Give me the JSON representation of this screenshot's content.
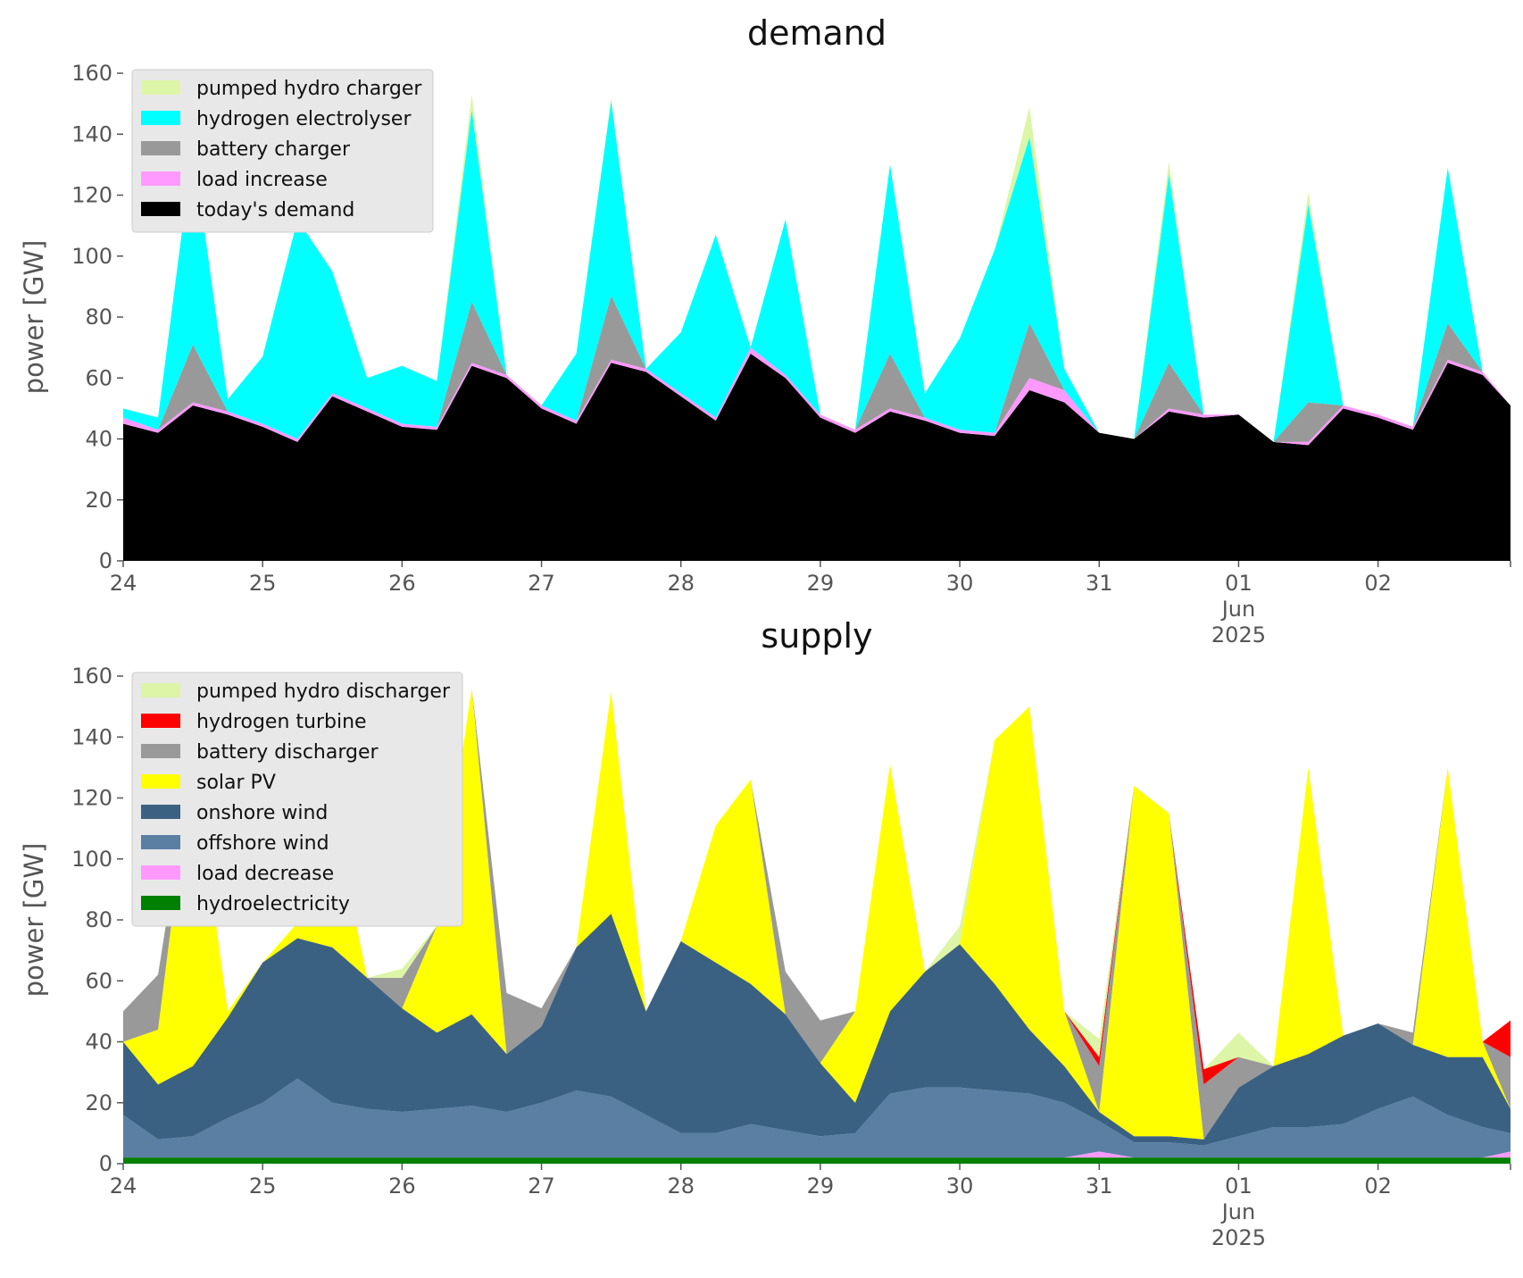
{
  "chart_data": [
    {
      "type": "area",
      "stacked": true,
      "title": "demand",
      "ylabel": "power [GW]",
      "ylim": [
        0,
        160
      ],
      "yticks": [
        0,
        20,
        40,
        60,
        80,
        100,
        120,
        140,
        160
      ],
      "xlim": [
        0,
        9.95
      ],
      "xticks": [
        {
          "x": 0,
          "label": "24"
        },
        {
          "x": 1,
          "label": "25"
        },
        {
          "x": 2,
          "label": "26"
        },
        {
          "x": 3,
          "label": "27"
        },
        {
          "x": 4,
          "label": "28"
        },
        {
          "x": 5,
          "label": "29"
        },
        {
          "x": 6,
          "label": "30"
        },
        {
          "x": 7,
          "label": "31"
        },
        {
          "x": 8,
          "label": "01\nJun\n2025"
        },
        {
          "x": 9,
          "label": "02"
        }
      ],
      "legend_position": "top-left",
      "legend": [
        "pumped hydro charger",
        "hydrogen electrolyser",
        "battery charger",
        "load increase",
        "today's demand"
      ],
      "x": [
        0,
        0.25,
        0.5,
        0.75,
        1,
        1.25,
        1.5,
        1.75,
        2,
        2.25,
        2.5,
        2.75,
        3,
        3.25,
        3.5,
        3.75,
        4,
        4.25,
        4.5,
        4.75,
        5,
        5.25,
        5.5,
        5.75,
        6,
        6.25,
        6.5,
        6.75,
        7,
        7.25,
        7.5,
        7.75,
        8,
        8.25,
        8.5,
        8.75,
        9,
        9.25,
        9.5,
        9.75,
        9.95
      ],
      "series": [
        {
          "name": "today's demand",
          "color": "#000000",
          "values": [
            45,
            42,
            51,
            48,
            44,
            39,
            54,
            49,
            44,
            43,
            64,
            60,
            50,
            45,
            65,
            62,
            54,
            46,
            68,
            60,
            47,
            42,
            49,
            46,
            42,
            41,
            56,
            52,
            42,
            40,
            49,
            47,
            48,
            39,
            38,
            50,
            47,
            43,
            65,
            61,
            51
          ]
        },
        {
          "name": "load increase",
          "color": "#ff99ff",
          "values": [
            2,
            1,
            1,
            1,
            1,
            1,
            1,
            1,
            1,
            1,
            1,
            1,
            1,
            1,
            1,
            1,
            1,
            1,
            2,
            1,
            1,
            1,
            1,
            1,
            1,
            1,
            4,
            4,
            0,
            0,
            1,
            1,
            0,
            0,
            1,
            1,
            1,
            1,
            1,
            1,
            0
          ]
        },
        {
          "name": "battery charger",
          "color": "#999999",
          "values": [
            0,
            0,
            19,
            0,
            0,
            0,
            0,
            0,
            0,
            0,
            20,
            0,
            0,
            0,
            21,
            0,
            0,
            0,
            0,
            0,
            0,
            0,
            18,
            0,
            0,
            0,
            18,
            0,
            0,
            0,
            15,
            0,
            0,
            0,
            13,
            0,
            0,
            0,
            12,
            0,
            0
          ]
        },
        {
          "name": "hydrogen electrolyser",
          "color": "#00ffff",
          "values": [
            3,
            4,
            65,
            4,
            22,
            72,
            40,
            10,
            19,
            15,
            63,
            0,
            0,
            22,
            64,
            0,
            20,
            60,
            0,
            51,
            0,
            0,
            62,
            8,
            30,
            60,
            61,
            7,
            0,
            0,
            62,
            0,
            0,
            0,
            65,
            0,
            0,
            0,
            51,
            0,
            0
          ]
        },
        {
          "name": "pumped hydro charger",
          "color": "#dcf5a6",
          "values": [
            0,
            0,
            0,
            0,
            0,
            0,
            0,
            0,
            0,
            0,
            5,
            0,
            0,
            0,
            1,
            0,
            0,
            0,
            0,
            0,
            0,
            0,
            0,
            0,
            0,
            0,
            10,
            0,
            0,
            0,
            4,
            0,
            0,
            0,
            4,
            0,
            0,
            0,
            0,
            0,
            0
          ]
        }
      ]
    },
    {
      "type": "area",
      "stacked": true,
      "title": "supply",
      "ylabel": "power [GW]",
      "ylim": [
        0,
        160
      ],
      "yticks": [
        0,
        20,
        40,
        60,
        80,
        100,
        120,
        140,
        160
      ],
      "xlim": [
        0,
        9.95
      ],
      "xticks": [
        {
          "x": 0,
          "label": "24"
        },
        {
          "x": 1,
          "label": "25"
        },
        {
          "x": 2,
          "label": "26"
        },
        {
          "x": 3,
          "label": "27"
        },
        {
          "x": 4,
          "label": "28"
        },
        {
          "x": 5,
          "label": "29"
        },
        {
          "x": 6,
          "label": "30"
        },
        {
          "x": 7,
          "label": "31"
        },
        {
          "x": 8,
          "label": "01\nJun\n2025"
        },
        {
          "x": 9,
          "label": "02"
        }
      ],
      "legend_position": "top-left",
      "legend": [
        "pumped hydro discharger",
        "hydrogen turbine",
        "battery discharger",
        "solar PV",
        "onshore wind",
        "offshore wind",
        "load decrease",
        "hydroelectricity"
      ],
      "x": [
        0,
        0.25,
        0.5,
        0.75,
        1,
        1.25,
        1.5,
        1.75,
        2,
        2.25,
        2.5,
        2.75,
        3,
        3.25,
        3.5,
        3.75,
        4,
        4.25,
        4.5,
        4.75,
        5,
        5.25,
        5.5,
        5.75,
        6,
        6.25,
        6.5,
        6.75,
        7,
        7.25,
        7.5,
        7.75,
        8,
        8.25,
        8.5,
        8.75,
        9,
        9.25,
        9.5,
        9.75,
        9.95
      ],
      "series": [
        {
          "name": "hydroelectricity",
          "color": "#008000",
          "values": [
            2,
            2,
            2,
            2,
            2,
            2,
            2,
            2,
            2,
            2,
            2,
            2,
            2,
            2,
            2,
            2,
            2,
            2,
            2,
            2,
            2,
            2,
            2,
            2,
            2,
            2,
            2,
            2,
            2,
            2,
            2,
            2,
            2,
            2,
            2,
            2,
            2,
            2,
            2,
            2,
            2
          ]
        },
        {
          "name": "load decrease",
          "color": "#ff99ff",
          "values": [
            0,
            0,
            0,
            0,
            0,
            0,
            0,
            0,
            0,
            0,
            0,
            0,
            0,
            0,
            0,
            0,
            0,
            0,
            0,
            0,
            0,
            0,
            0,
            0,
            0,
            0,
            0,
            0,
            2,
            0,
            0,
            0,
            0,
            0,
            0,
            0,
            0,
            0,
            0,
            0,
            2
          ]
        },
        {
          "name": "offshore wind",
          "color": "#5a7fa3",
          "values": [
            14,
            6,
            7,
            13,
            18,
            26,
            18,
            16,
            15,
            16,
            17,
            15,
            18,
            22,
            20,
            14,
            8,
            8,
            11,
            9,
            7,
            8,
            21,
            23,
            23,
            22,
            21,
            18,
            10,
            5,
            5,
            4,
            7,
            10,
            10,
            11,
            16,
            20,
            14,
            10,
            6
          ]
        },
        {
          "name": "onshore wind",
          "color": "#3b6182",
          "values": [
            24,
            18,
            23,
            33,
            46,
            46,
            51,
            43,
            34,
            25,
            30,
            19,
            25,
            47,
            60,
            34,
            63,
            56,
            46,
            38,
            24,
            10,
            27,
            38,
            47,
            35,
            21,
            12,
            3,
            2,
            2,
            2,
            16,
            20,
            24,
            29,
            28,
            17,
            19,
            23,
            8
          ]
        },
        {
          "name": "solar PV",
          "color": "#ffff00",
          "values": [
            0,
            18,
            103,
            2,
            0,
            5,
            46,
            0,
            0,
            35,
            107,
            0,
            0,
            0,
            73,
            0,
            0,
            45,
            67,
            0,
            0,
            30,
            81,
            0,
            0,
            80,
            106,
            18,
            0,
            115,
            106,
            0,
            0,
            0,
            94,
            0,
            0,
            0,
            95,
            5,
            0
          ]
        },
        {
          "name": "battery discharger",
          "color": "#999999",
          "values": [
            10,
            18,
            0,
            0,
            0,
            0,
            0,
            0,
            10,
            0,
            0,
            20,
            6,
            0,
            0,
            0,
            0,
            0,
            0,
            14,
            14,
            0,
            0,
            0,
            0,
            0,
            0,
            0,
            15,
            0,
            0,
            18,
            10,
            0,
            0,
            0,
            0,
            4,
            0,
            0,
            17
          ]
        },
        {
          "name": "hydrogen turbine",
          "color": "#ff0000",
          "values": [
            0,
            0,
            0,
            0,
            0,
            0,
            0,
            0,
            0,
            0,
            0,
            0,
            0,
            0,
            0,
            0,
            0,
            0,
            0,
            0,
            0,
            0,
            0,
            0,
            0,
            0,
            0,
            0,
            3,
            0,
            0,
            5,
            0,
            0,
            0,
            0,
            0,
            0,
            0,
            0,
            12
          ]
        },
        {
          "name": "pumped hydro discharger",
          "color": "#dcf5a6",
          "values": [
            0,
            0,
            0,
            0,
            0,
            0,
            0,
            0,
            3,
            0,
            0,
            0,
            0,
            0,
            0,
            0,
            0,
            0,
            0,
            0,
            0,
            0,
            0,
            0,
            6,
            0,
            0,
            0,
            6,
            0,
            0,
            0,
            8,
            0,
            0,
            0,
            0,
            0,
            0,
            0,
            0
          ]
        }
      ]
    }
  ]
}
